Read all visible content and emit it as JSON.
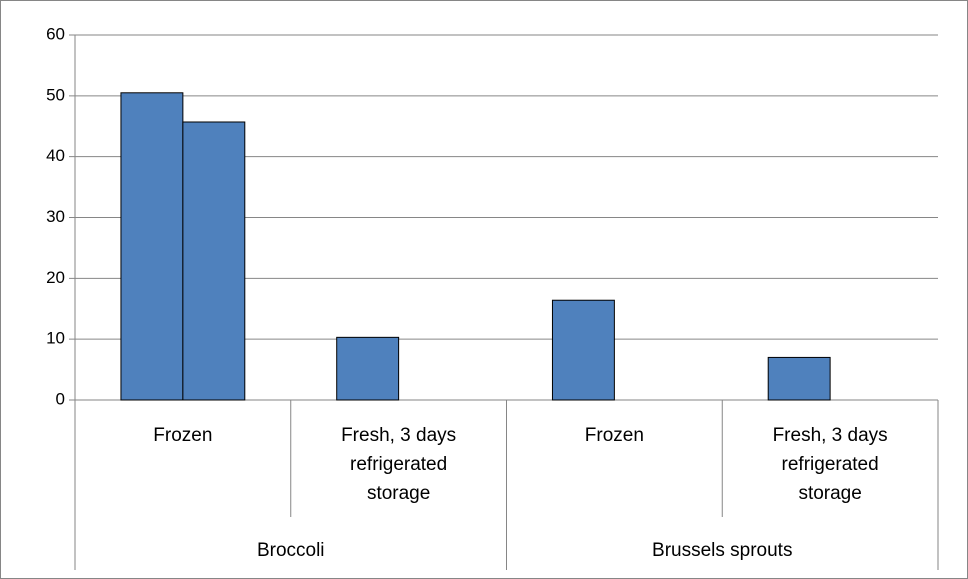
{
  "chart_data": {
    "type": "bar",
    "categories": [
      "Frozen",
      "Fresh, 3 days refrigerated storage",
      "Frozen",
      "Fresh, 3 days refrigerated storage"
    ],
    "category_groups": [
      "Broccoli",
      "Brussels sprouts"
    ],
    "series": [
      {
        "color": "#4f81bd",
        "values": [
          50.5,
          10.3,
          16.4,
          7
        ]
      },
      {
        "color": "#4f81bd",
        "values": [
          45.7,
          null,
          null,
          null
        ]
      }
    ],
    "ylim": [
      0,
      60
    ],
    "yticks": [
      0,
      10,
      20,
      30,
      40,
      50,
      60
    ],
    "grid": true
  }
}
